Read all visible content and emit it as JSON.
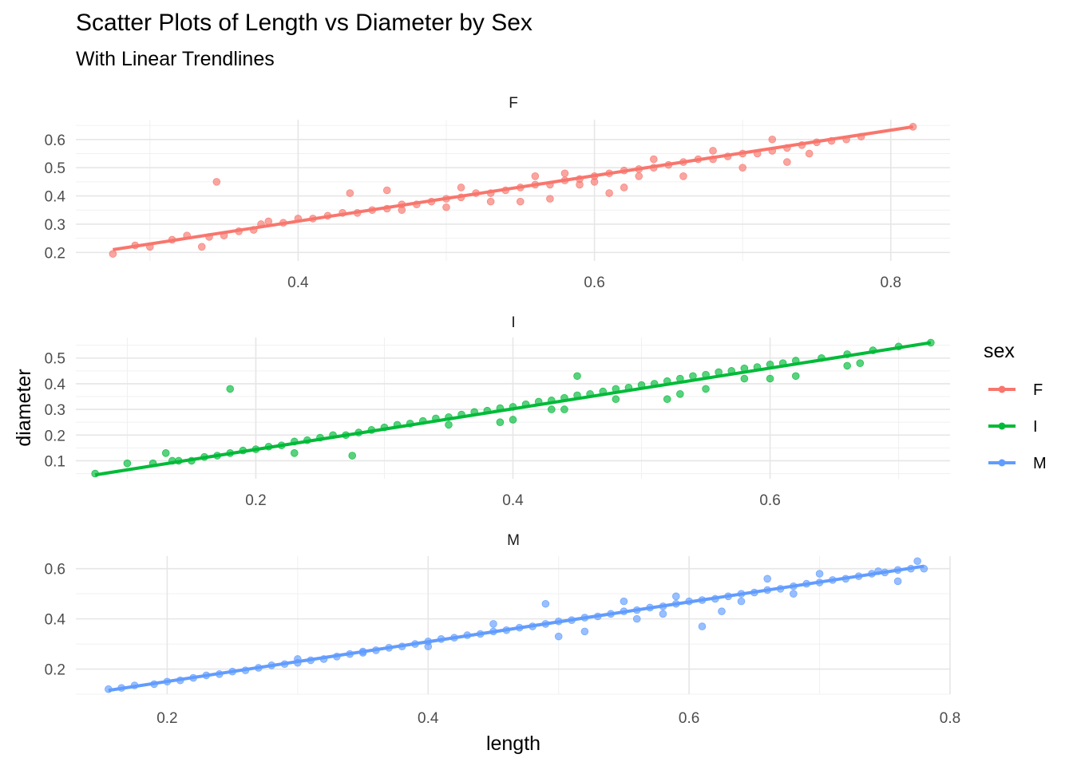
{
  "chart_data": {
    "type": "scatter",
    "title": "Scatter Plots of Length vs Diameter by Sex",
    "subtitle": "With Linear Trendlines",
    "xlabel": "length",
    "ylabel": "diameter",
    "legend": {
      "title": "sex",
      "position": "right",
      "entries": [
        {
          "label": "F",
          "color": "#F8766D"
        },
        {
          "label": "I",
          "color": "#00BA38"
        },
        {
          "label": "M",
          "color": "#619CFF"
        }
      ]
    },
    "grid": true,
    "facets": [
      {
        "label": "F",
        "color": "#F8766D",
        "xlim": [
          0.25,
          0.84
        ],
        "ylim": [
          0.17,
          0.67
        ],
        "xticks": [
          0.4,
          0.6,
          0.8
        ],
        "xtick_labels": [
          "0.4",
          "0.6",
          "0.8"
        ],
        "yticks": [
          0.2,
          0.3,
          0.4,
          0.5,
          0.6
        ],
        "ytick_labels": [
          "0.2",
          "0.3",
          "0.4",
          "0.5",
          "0.6"
        ],
        "trend": {
          "x": [
            0.275,
            0.815
          ],
          "y": [
            0.21,
            0.645
          ]
        },
        "points": [
          [
            0.275,
            0.195
          ],
          [
            0.29,
            0.225
          ],
          [
            0.3,
            0.22
          ],
          [
            0.315,
            0.245
          ],
          [
            0.325,
            0.26
          ],
          [
            0.335,
            0.22
          ],
          [
            0.34,
            0.255
          ],
          [
            0.35,
            0.26
          ],
          [
            0.36,
            0.275
          ],
          [
            0.37,
            0.28
          ],
          [
            0.375,
            0.3
          ],
          [
            0.38,
            0.31
          ],
          [
            0.39,
            0.305
          ],
          [
            0.4,
            0.32
          ],
          [
            0.41,
            0.32
          ],
          [
            0.42,
            0.33
          ],
          [
            0.43,
            0.34
          ],
          [
            0.44,
            0.34
          ],
          [
            0.45,
            0.35
          ],
          [
            0.46,
            0.355
          ],
          [
            0.47,
            0.37
          ],
          [
            0.48,
            0.37
          ],
          [
            0.49,
            0.38
          ],
          [
            0.5,
            0.39
          ],
          [
            0.51,
            0.395
          ],
          [
            0.52,
            0.41
          ],
          [
            0.53,
            0.41
          ],
          [
            0.54,
            0.42
          ],
          [
            0.55,
            0.43
          ],
          [
            0.56,
            0.44
          ],
          [
            0.57,
            0.44
          ],
          [
            0.58,
            0.455
          ],
          [
            0.59,
            0.46
          ],
          [
            0.6,
            0.47
          ],
          [
            0.61,
            0.48
          ],
          [
            0.62,
            0.49
          ],
          [
            0.63,
            0.495
          ],
          [
            0.64,
            0.5
          ],
          [
            0.65,
            0.51
          ],
          [
            0.66,
            0.52
          ],
          [
            0.67,
            0.53
          ],
          [
            0.68,
            0.53
          ],
          [
            0.69,
            0.54
          ],
          [
            0.7,
            0.55
          ],
          [
            0.71,
            0.55
          ],
          [
            0.72,
            0.56
          ],
          [
            0.73,
            0.57
          ],
          [
            0.74,
            0.58
          ],
          [
            0.75,
            0.59
          ],
          [
            0.76,
            0.595
          ],
          [
            0.77,
            0.6
          ],
          [
            0.78,
            0.61
          ],
          [
            0.815,
            0.645
          ],
          [
            0.345,
            0.45
          ],
          [
            0.435,
            0.41
          ],
          [
            0.51,
            0.43
          ],
          [
            0.46,
            0.42
          ],
          [
            0.57,
            0.39
          ],
          [
            0.55,
            0.38
          ],
          [
            0.61,
            0.41
          ],
          [
            0.62,
            0.43
          ],
          [
            0.68,
            0.56
          ],
          [
            0.7,
            0.5
          ],
          [
            0.73,
            0.52
          ],
          [
            0.66,
            0.47
          ],
          [
            0.745,
            0.55
          ],
          [
            0.72,
            0.6
          ],
          [
            0.64,
            0.53
          ],
          [
            0.58,
            0.48
          ],
          [
            0.53,
            0.38
          ],
          [
            0.5,
            0.36
          ],
          [
            0.47,
            0.35
          ],
          [
            0.56,
            0.47
          ],
          [
            0.59,
            0.44
          ],
          [
            0.63,
            0.47
          ],
          [
            0.6,
            0.45
          ]
        ]
      },
      {
        "label": "I",
        "color": "#00BA38",
        "xlim": [
          0.06,
          0.74
        ],
        "ylim": [
          0.03,
          0.58
        ],
        "xticks": [
          0.2,
          0.4,
          0.6
        ],
        "xtick_labels": [
          "0.2",
          "0.4",
          "0.6"
        ],
        "yticks": [
          0.1,
          0.2,
          0.3,
          0.4,
          0.5
        ],
        "ytick_labels": [
          "0.1",
          "0.2",
          "0.3",
          "0.4",
          "0.5"
        ],
        "trend": {
          "x": [
            0.075,
            0.725
          ],
          "y": [
            0.045,
            0.56
          ]
        },
        "points": [
          [
            0.075,
            0.05
          ],
          [
            0.1,
            0.09
          ],
          [
            0.12,
            0.09
          ],
          [
            0.13,
            0.13
          ],
          [
            0.135,
            0.1
          ],
          [
            0.14,
            0.1
          ],
          [
            0.15,
            0.1
          ],
          [
            0.16,
            0.115
          ],
          [
            0.17,
            0.12
          ],
          [
            0.18,
            0.13
          ],
          [
            0.19,
            0.14
          ],
          [
            0.2,
            0.145
          ],
          [
            0.21,
            0.155
          ],
          [
            0.22,
            0.16
          ],
          [
            0.23,
            0.175
          ],
          [
            0.24,
            0.18
          ],
          [
            0.25,
            0.19
          ],
          [
            0.26,
            0.2
          ],
          [
            0.27,
            0.2
          ],
          [
            0.28,
            0.21
          ],
          [
            0.29,
            0.22
          ],
          [
            0.3,
            0.23
          ],
          [
            0.31,
            0.24
          ],
          [
            0.32,
            0.245
          ],
          [
            0.33,
            0.255
          ],
          [
            0.34,
            0.265
          ],
          [
            0.35,
            0.27
          ],
          [
            0.36,
            0.28
          ],
          [
            0.37,
            0.29
          ],
          [
            0.38,
            0.295
          ],
          [
            0.39,
            0.305
          ],
          [
            0.4,
            0.31
          ],
          [
            0.41,
            0.32
          ],
          [
            0.42,
            0.33
          ],
          [
            0.43,
            0.335
          ],
          [
            0.44,
            0.345
          ],
          [
            0.45,
            0.355
          ],
          [
            0.46,
            0.36
          ],
          [
            0.47,
            0.37
          ],
          [
            0.48,
            0.38
          ],
          [
            0.49,
            0.385
          ],
          [
            0.5,
            0.395
          ],
          [
            0.51,
            0.4
          ],
          [
            0.52,
            0.41
          ],
          [
            0.53,
            0.42
          ],
          [
            0.54,
            0.43
          ],
          [
            0.55,
            0.435
          ],
          [
            0.56,
            0.445
          ],
          [
            0.57,
            0.45
          ],
          [
            0.58,
            0.46
          ],
          [
            0.59,
            0.465
          ],
          [
            0.6,
            0.475
          ],
          [
            0.61,
            0.48
          ],
          [
            0.62,
            0.49
          ],
          [
            0.64,
            0.5
          ],
          [
            0.66,
            0.515
          ],
          [
            0.68,
            0.53
          ],
          [
            0.7,
            0.545
          ],
          [
            0.725,
            0.56
          ],
          [
            0.18,
            0.38
          ],
          [
            0.275,
            0.12
          ],
          [
            0.23,
            0.13
          ],
          [
            0.4,
            0.26
          ],
          [
            0.45,
            0.43
          ],
          [
            0.39,
            0.25
          ],
          [
            0.44,
            0.3
          ],
          [
            0.52,
            0.34
          ],
          [
            0.55,
            0.38
          ],
          [
            0.6,
            0.42
          ],
          [
            0.62,
            0.43
          ],
          [
            0.67,
            0.48
          ],
          [
            0.66,
            0.47
          ],
          [
            0.58,
            0.42
          ],
          [
            0.48,
            0.34
          ],
          [
            0.43,
            0.3
          ],
          [
            0.53,
            0.36
          ],
          [
            0.35,
            0.24
          ]
        ]
      },
      {
        "label": "M",
        "color": "#619CFF",
        "xlim": [
          0.13,
          0.8
        ],
        "ylim": [
          0.1,
          0.65
        ],
        "xticks": [
          0.2,
          0.4,
          0.6,
          0.8
        ],
        "xtick_labels": [
          "0.2",
          "0.4",
          "0.6",
          "0.8"
        ],
        "yticks": [
          0.2,
          0.4,
          0.6
        ],
        "ytick_labels": [
          "0.2",
          "0.4",
          "0.6"
        ],
        "trend": {
          "x": [
            0.155,
            0.78
          ],
          "y": [
            0.115,
            0.61
          ]
        },
        "points": [
          [
            0.155,
            0.12
          ],
          [
            0.165,
            0.125
          ],
          [
            0.175,
            0.135
          ],
          [
            0.19,
            0.14
          ],
          [
            0.2,
            0.15
          ],
          [
            0.21,
            0.155
          ],
          [
            0.22,
            0.165
          ],
          [
            0.23,
            0.175
          ],
          [
            0.24,
            0.18
          ],
          [
            0.25,
            0.19
          ],
          [
            0.26,
            0.195
          ],
          [
            0.27,
            0.205
          ],
          [
            0.28,
            0.215
          ],
          [
            0.29,
            0.22
          ],
          [
            0.3,
            0.225
          ],
          [
            0.31,
            0.235
          ],
          [
            0.32,
            0.24
          ],
          [
            0.33,
            0.25
          ],
          [
            0.34,
            0.26
          ],
          [
            0.35,
            0.265
          ],
          [
            0.36,
            0.275
          ],
          [
            0.37,
            0.285
          ],
          [
            0.38,
            0.29
          ],
          [
            0.39,
            0.3
          ],
          [
            0.4,
            0.31
          ],
          [
            0.41,
            0.32
          ],
          [
            0.42,
            0.325
          ],
          [
            0.43,
            0.335
          ],
          [
            0.44,
            0.34
          ],
          [
            0.45,
            0.35
          ],
          [
            0.46,
            0.355
          ],
          [
            0.47,
            0.365
          ],
          [
            0.48,
            0.37
          ],
          [
            0.49,
            0.38
          ],
          [
            0.5,
            0.39
          ],
          [
            0.51,
            0.395
          ],
          [
            0.52,
            0.405
          ],
          [
            0.53,
            0.41
          ],
          [
            0.54,
            0.42
          ],
          [
            0.55,
            0.43
          ],
          [
            0.56,
            0.435
          ],
          [
            0.57,
            0.445
          ],
          [
            0.58,
            0.45
          ],
          [
            0.59,
            0.46
          ],
          [
            0.6,
            0.47
          ],
          [
            0.61,
            0.475
          ],
          [
            0.62,
            0.48
          ],
          [
            0.63,
            0.49
          ],
          [
            0.64,
            0.5
          ],
          [
            0.65,
            0.505
          ],
          [
            0.66,
            0.515
          ],
          [
            0.67,
            0.52
          ],
          [
            0.68,
            0.53
          ],
          [
            0.69,
            0.54
          ],
          [
            0.7,
            0.545
          ],
          [
            0.71,
            0.555
          ],
          [
            0.72,
            0.56
          ],
          [
            0.73,
            0.57
          ],
          [
            0.74,
            0.58
          ],
          [
            0.75,
            0.585
          ],
          [
            0.76,
            0.595
          ],
          [
            0.77,
            0.6
          ],
          [
            0.78,
            0.6
          ],
          [
            0.775,
            0.63
          ],
          [
            0.49,
            0.46
          ],
          [
            0.61,
            0.37
          ],
          [
            0.625,
            0.43
          ],
          [
            0.56,
            0.4
          ],
          [
            0.52,
            0.35
          ],
          [
            0.59,
            0.49
          ],
          [
            0.66,
            0.56
          ],
          [
            0.7,
            0.58
          ],
          [
            0.76,
            0.55
          ],
          [
            0.745,
            0.59
          ],
          [
            0.5,
            0.33
          ],
          [
            0.45,
            0.38
          ],
          [
            0.58,
            0.42
          ],
          [
            0.64,
            0.47
          ],
          [
            0.68,
            0.5
          ],
          [
            0.55,
            0.47
          ],
          [
            0.4,
            0.29
          ],
          [
            0.35,
            0.27
          ],
          [
            0.3,
            0.24
          ]
        ]
      }
    ]
  }
}
